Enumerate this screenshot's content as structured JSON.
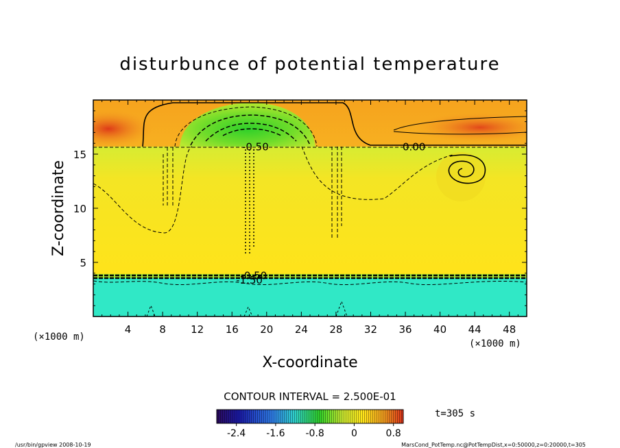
{
  "chart_data": {
    "type": "heatmap",
    "title": "disturbunce of potential temperature",
    "xlabel": "X-coordinate",
    "ylabel": "Z-coordinate",
    "x_unit": "(×1000 m)",
    "y_unit": "(×1000 m)",
    "xlim": [
      0,
      50
    ],
    "ylim": [
      0,
      20
    ],
    "x_ticks": [
      4,
      8,
      12,
      16,
      20,
      24,
      28,
      32,
      36,
      40,
      44,
      48
    ],
    "y_ticks": [
      5,
      10,
      15
    ],
    "contour_interval_label": "CONTOUR INTERVAL = 2.500E-01",
    "time_label": "t=305 s",
    "contour_labels": [
      {
        "text": "-0.50",
        "x": 18.7,
        "z": 15.6
      },
      {
        "text": "0.00",
        "x": 37.0,
        "z": 15.6
      },
      {
        "text": "-0.50",
        "x": 18.5,
        "z": 3.7
      },
      {
        "text": "-1.50",
        "x": 18.0,
        "z": 3.3
      }
    ],
    "colorbar": {
      "range": [
        -2.8,
        1.0
      ],
      "tick_labels": [
        "-2.4",
        "-1.6",
        "-0.8",
        "0",
        "0.8"
      ],
      "tick_values": [
        -2.4,
        -1.6,
        -0.8,
        0,
        0.8
      ]
    },
    "regions": [
      {
        "label": "upper layer (above ~15.5 km)",
        "value_range": [
          0.0,
          0.8
        ]
      },
      {
        "label": "dome 12–26 km near z=16–19 km",
        "value_range": [
          -1.5,
          -0.5
        ]
      },
      {
        "label": "mid layer 4–15.5 km",
        "value_range": [
          0.25,
          0.5
        ]
      },
      {
        "label": "lower layer below ~4 km",
        "value_range": [
          -1.75,
          -1.5
        ]
      }
    ],
    "colors": {
      "upper_orange": "#f29a1f",
      "upper_red": "#e2471a",
      "mid_yellow": "#ffe61a",
      "lime": "#cfea30",
      "green": "#2fd02a",
      "low_cyan": "#2fe8c8"
    }
  },
  "footer": {
    "left": "/usr/bin/gpview   2008-10-19",
    "right": "MarsCond_PotTemp.nc@PotTempDist,x=0:50000,z=0:20000,t=305"
  }
}
